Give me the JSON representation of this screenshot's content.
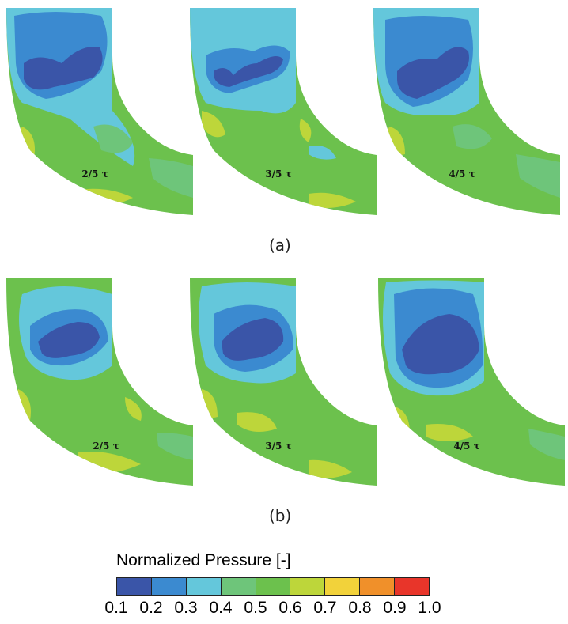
{
  "colors": {
    "levels": [
      "#3a55a8",
      "#3b8ad0",
      "#64c7db",
      "#6ec57a",
      "#6cc14d",
      "#bdd63a",
      "#f2d23a",
      "#f0902a",
      "#e8352a"
    ]
  },
  "rows": [
    {
      "caption": "(a)",
      "panels": [
        {
          "label": "2/5 τ"
        },
        {
          "label": "3/5 τ"
        },
        {
          "label": "4/5 τ"
        }
      ]
    },
    {
      "caption": "(b)",
      "panels": [
        {
          "label": "2/5 τ"
        },
        {
          "label": "3/5 τ"
        },
        {
          "label": "4/5 τ"
        }
      ]
    }
  ],
  "legend": {
    "title": "Normalized Pressure [-]",
    "ticks": [
      "0.1",
      "0.2",
      "0.3",
      "0.4",
      "0.5",
      "0.6",
      "0.7",
      "0.8",
      "0.9",
      "1.0"
    ]
  }
}
